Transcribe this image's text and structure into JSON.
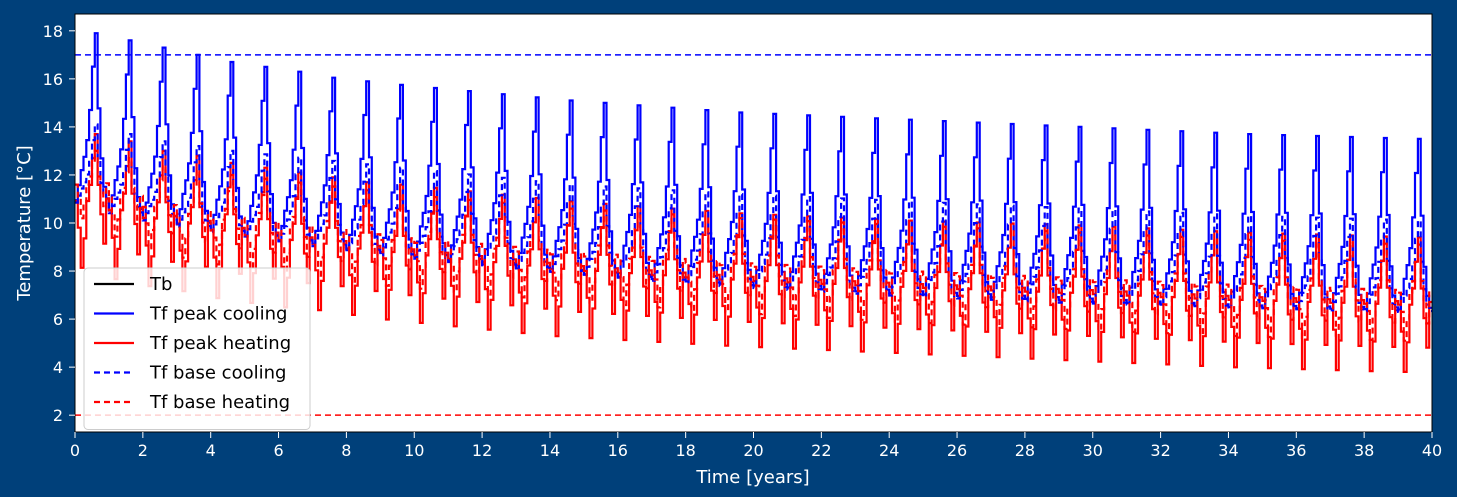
{
  "chart_data": {
    "type": "line",
    "title": "",
    "xlabel": "Time [years]",
    "ylabel": "Temperature [°C]",
    "xlim": [
      0,
      40
    ],
    "ylim": [
      1.3,
      18.7
    ],
    "xticks": [
      0,
      2,
      4,
      6,
      8,
      10,
      12,
      14,
      16,
      18,
      20,
      22,
      24,
      26,
      28,
      30,
      32,
      34,
      36,
      38,
      40
    ],
    "yticks": [
      2,
      4,
      6,
      8,
      10,
      12,
      14,
      16,
      18
    ],
    "grid": false,
    "legend_position": "lower-left",
    "colors": {
      "background": "#00407a",
      "plot_area": "#ffffff",
      "cooling": "#0000ff",
      "heating": "#ff0000",
      "borehole": "#000000"
    },
    "series": [
      {
        "name": "Tb",
        "color": "#000000",
        "style": "solid",
        "x": [],
        "y": []
      },
      {
        "name": "Tf peak cooling",
        "color": "#0000ff",
        "style": "solid",
        "yearly_peak": {
          "x": [
            0.67,
            1.67,
            2.67,
            3.67,
            4.67,
            5.67,
            6.67,
            7.67,
            8.67,
            9.67,
            14.67,
            19.67,
            24.67,
            29.67,
            34.67,
            39.67
          ],
          "y": [
            17.9,
            17.6,
            17.3,
            17.0,
            16.7,
            16.5,
            16.3,
            16.05,
            15.9,
            15.75,
            15.1,
            14.6,
            14.3,
            14.0,
            13.7,
            13.5
          ]
        },
        "yearly_min": {
          "x": [
            0.0,
            1.0,
            2.0,
            3.0,
            4.0,
            5.0,
            6.0,
            7.0,
            8.0,
            9.0,
            14.0,
            19.0,
            24.0,
            29.0,
            34.0,
            39.0
          ],
          "y": [
            11.1,
            10.6,
            10.3,
            10.0,
            9.8,
            9.5,
            9.3,
            9.1,
            8.9,
            8.8,
            8.0,
            7.5,
            7.1,
            6.8,
            6.5,
            6.4
          ]
        }
      },
      {
        "name": "Tf peak heating",
        "color": "#ff0000",
        "style": "solid",
        "yearly_peak": {
          "x": [
            0.67,
            1.67,
            2.67,
            3.67,
            4.67,
            5.67,
            6.67,
            7.67,
            8.67,
            9.67,
            14.67,
            19.67,
            24.67,
            29.67,
            34.67,
            39.67
          ],
          "y": [
            13.7,
            13.4,
            13.0,
            12.8,
            12.5,
            12.3,
            12.1,
            11.9,
            11.7,
            11.6,
            10.9,
            10.4,
            10.1,
            9.9,
            9.6,
            9.4
          ]
        },
        "yearly_min": {
          "x": [
            0.17,
            1.17,
            2.17,
            3.17,
            4.17,
            5.17,
            6.17,
            7.17,
            8.17,
            9.17,
            14.17,
            19.17,
            24.17,
            29.17,
            34.17,
            39.17
          ],
          "y": [
            8.2,
            7.7,
            7.4,
            7.2,
            6.9,
            6.7,
            6.5,
            6.4,
            6.2,
            6.0,
            5.3,
            4.9,
            4.6,
            4.3,
            4.0,
            3.8
          ]
        }
      },
      {
        "name": "Tf base cooling",
        "color": "#0000ff",
        "style": "dashed",
        "yearly_peak": {
          "x": [
            0.67,
            1.67,
            2.67,
            3.67,
            4.67,
            9.67,
            14.67,
            19.67,
            24.67,
            29.67,
            34.67,
            39.67
          ],
          "y": [
            14.1,
            13.7,
            13.4,
            13.2,
            13.0,
            12.3,
            11.6,
            11.2,
            10.9,
            10.6,
            10.3,
            10.1
          ]
        },
        "yearly_min": {
          "x": [
            0.0,
            1.0,
            2.0,
            3.0,
            4.0,
            9.0,
            14.0,
            19.0,
            24.0,
            29.0,
            34.0,
            39.0
          ],
          "y": [
            11.0,
            10.5,
            10.2,
            9.9,
            9.7,
            8.7,
            8.0,
            7.4,
            7.0,
            6.7,
            6.5,
            6.3
          ]
        }
      },
      {
        "name": "Tf base heating",
        "color": "#ff0000",
        "style": "dashed",
        "yearly_peak": {
          "x": [
            0.67,
            1.67,
            2.67,
            3.67,
            4.67,
            9.67,
            14.67,
            19.67,
            24.67,
            29.67,
            34.67,
            39.67
          ],
          "y": [
            13.0,
            12.7,
            12.4,
            12.2,
            12.0,
            11.2,
            10.6,
            10.2,
            9.9,
            9.6,
            9.3,
            9.1
          ]
        },
        "yearly_min": {
          "x": [
            0.17,
            1.17,
            2.17,
            3.17,
            4.17,
            9.17,
            14.17,
            19.17,
            24.17,
            29.17,
            34.17,
            39.17
          ],
          "y": [
            10.3,
            9.5,
            9.0,
            8.6,
            8.3,
            7.4,
            6.8,
            6.3,
            5.9,
            5.6,
            5.3,
            5.1
          ]
        }
      }
    ],
    "limits": [
      {
        "name": "max cooling limit",
        "y": 17.0,
        "color": "#0000ff",
        "style": "dashed"
      },
      {
        "name": "min heating limit",
        "y": 2.0,
        "color": "#ff0000",
        "style": "dashed"
      }
    ],
    "legend": [
      {
        "label": "Tb",
        "color": "#000000",
        "style": "solid"
      },
      {
        "label": "Tf peak cooling",
        "color": "#0000ff",
        "style": "solid"
      },
      {
        "label": "Tf peak heating",
        "color": "#ff0000",
        "style": "solid"
      },
      {
        "label": "Tf base cooling",
        "color": "#0000ff",
        "style": "dashed"
      },
      {
        "label": "Tf base heating",
        "color": "#ff0000",
        "style": "dashed"
      }
    ]
  }
}
